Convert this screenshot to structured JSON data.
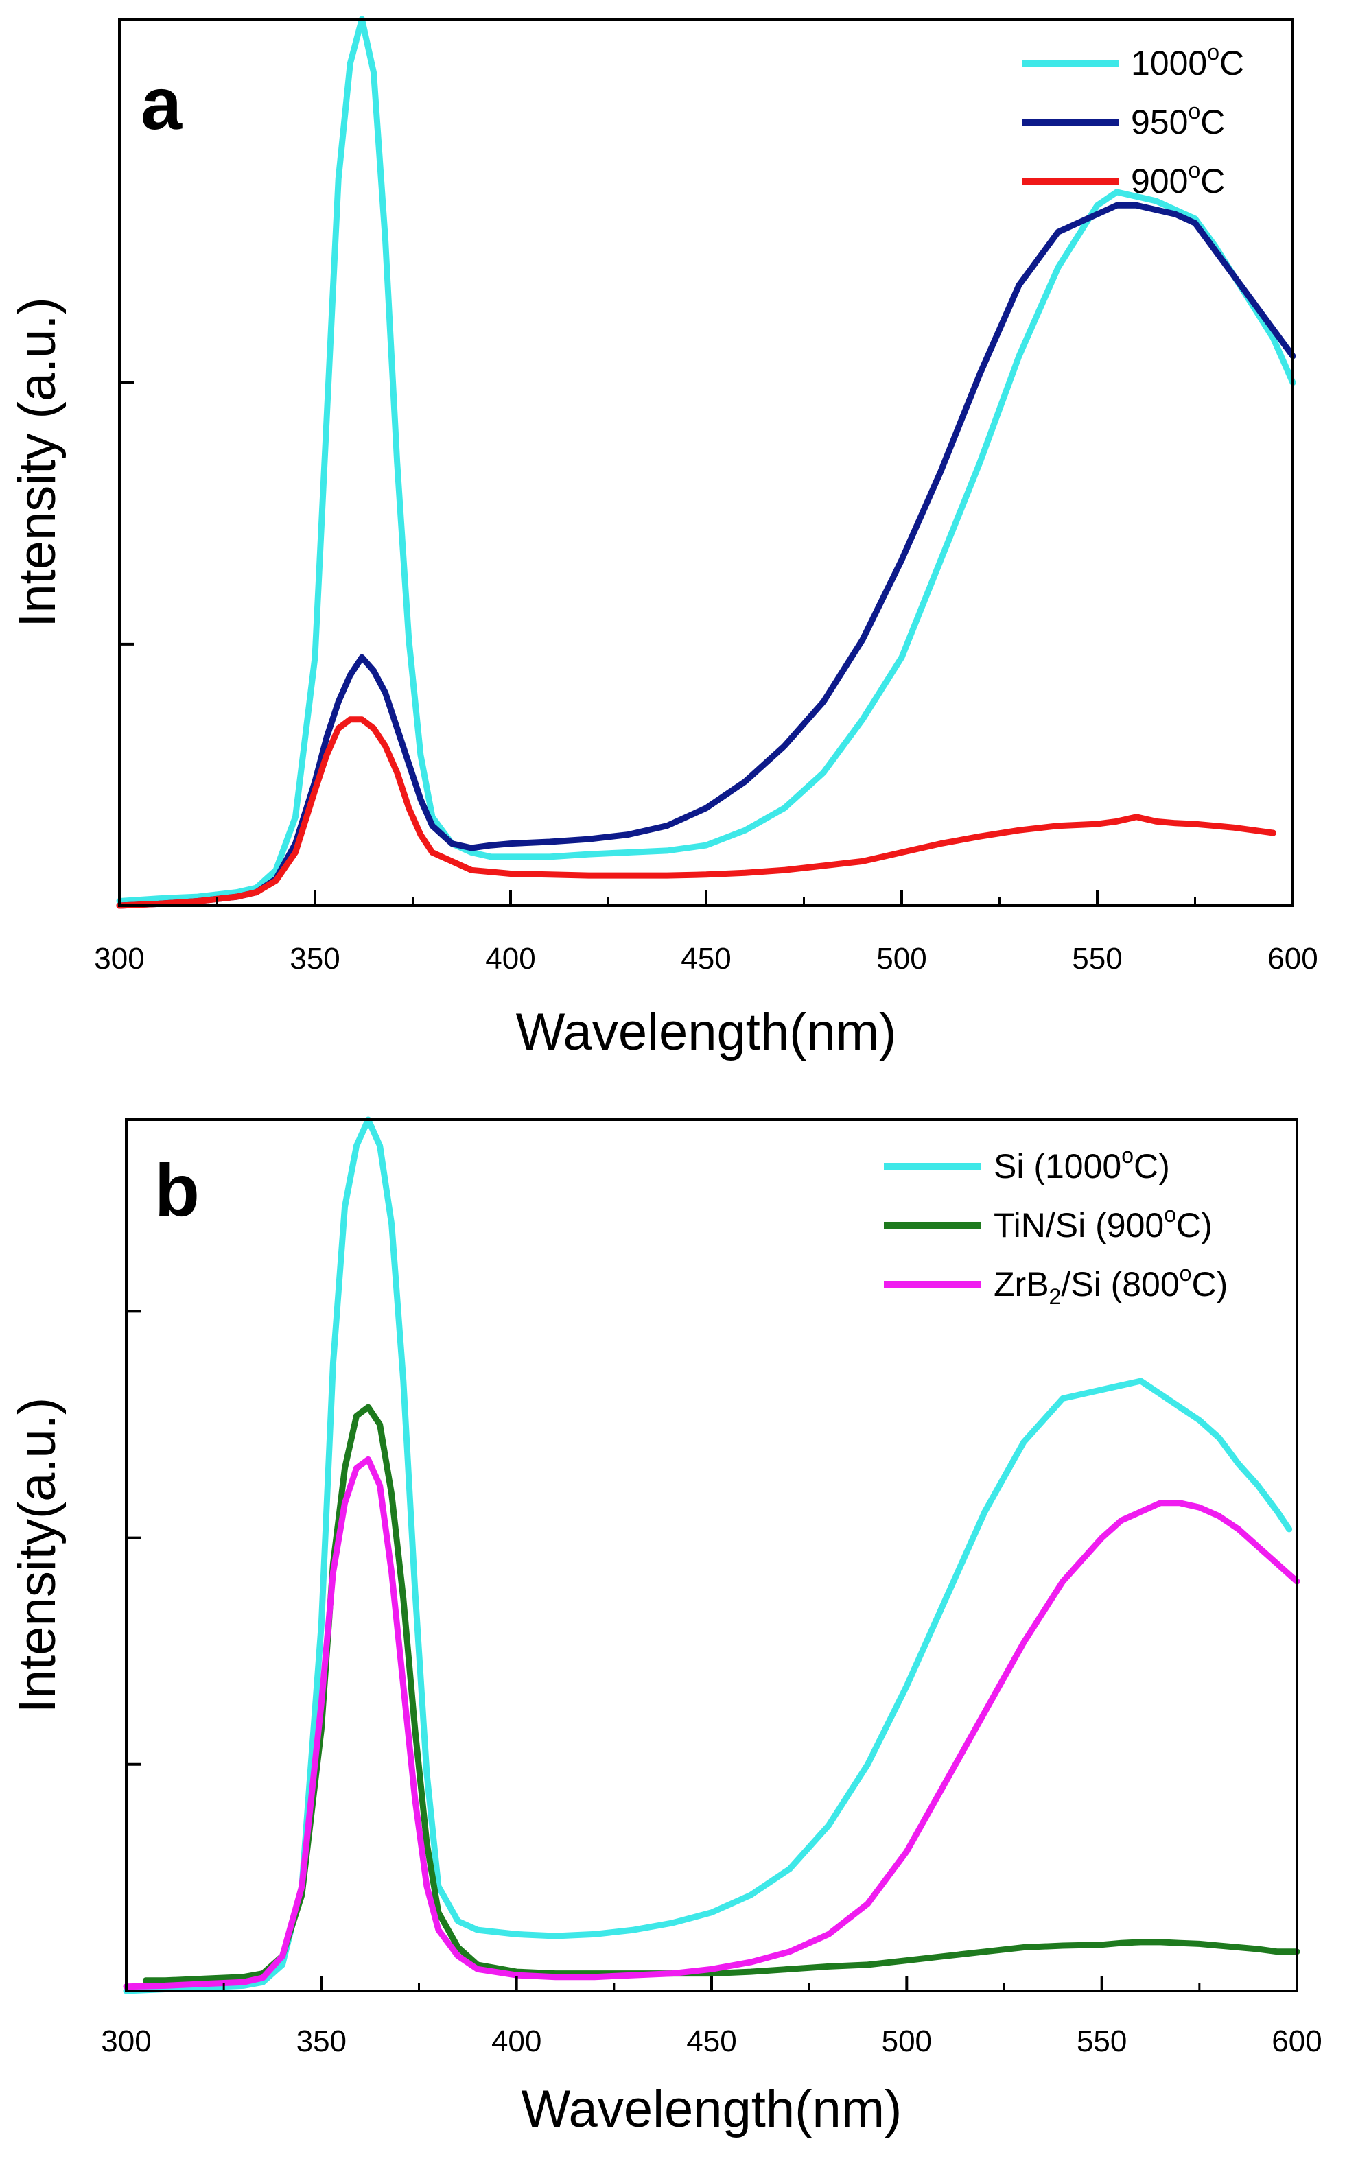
{
  "chart_data": [
    {
      "type": "line",
      "panel_label": "a",
      "xlabel": "Wavelength(nm)",
      "ylabel": "Intensity (a.u.)",
      "xlim": [
        300,
        600
      ],
      "ylim": [
        0,
        1
      ],
      "xticks": [
        300,
        350,
        400,
        450,
        500,
        550,
        600
      ],
      "yticks": [
        0.295,
        0.59
      ],
      "grid": false,
      "legend_position": "top-right",
      "series": [
        {
          "name": "1000°C",
          "label_main": "1000",
          "label_sup": "o",
          "label_end": "C",
          "color": "#3ee8e8",
          "x": [
            300,
            310,
            320,
            330,
            335,
            340,
            345,
            350,
            353,
            356,
            359,
            362,
            365,
            368,
            371,
            374,
            377,
            380,
            385,
            390,
            395,
            400,
            410,
            420,
            430,
            440,
            450,
            460,
            470,
            480,
            490,
            500,
            510,
            520,
            530,
            540,
            550,
            555,
            560,
            565,
            570,
            575,
            580,
            585,
            590,
            595,
            600
          ],
          "y": [
            0.005,
            0.008,
            0.01,
            0.015,
            0.02,
            0.04,
            0.1,
            0.28,
            0.55,
            0.82,
            0.95,
            1.0,
            0.94,
            0.75,
            0.5,
            0.3,
            0.17,
            0.1,
            0.07,
            0.06,
            0.055,
            0.055,
            0.055,
            0.058,
            0.06,
            0.062,
            0.068,
            0.085,
            0.11,
            0.15,
            0.21,
            0.28,
            0.39,
            0.5,
            0.62,
            0.72,
            0.79,
            0.805,
            0.8,
            0.795,
            0.785,
            0.775,
            0.745,
            0.71,
            0.675,
            0.64,
            0.59
          ]
        },
        {
          "name": "950°C",
          "label_main": "950",
          "label_sup": "o",
          "label_end": "C",
          "color": "#0d1a8a",
          "x": [
            300,
            310,
            320,
            330,
            335,
            340,
            345,
            350,
            353,
            356,
            359,
            362,
            365,
            368,
            371,
            374,
            377,
            380,
            385,
            390,
            395,
            400,
            410,
            420,
            430,
            440,
            450,
            460,
            470,
            480,
            490,
            500,
            510,
            520,
            530,
            540,
            550,
            555,
            560,
            565,
            570,
            575,
            580,
            585,
            590,
            595,
            600
          ],
          "y": [
            0.0,
            0.002,
            0.005,
            0.01,
            0.015,
            0.03,
            0.07,
            0.14,
            0.19,
            0.23,
            0.26,
            0.28,
            0.265,
            0.24,
            0.2,
            0.16,
            0.12,
            0.09,
            0.07,
            0.065,
            0.068,
            0.07,
            0.072,
            0.075,
            0.08,
            0.09,
            0.11,
            0.14,
            0.18,
            0.23,
            0.3,
            0.39,
            0.49,
            0.6,
            0.7,
            0.76,
            0.78,
            0.79,
            0.79,
            0.785,
            0.78,
            0.77,
            0.74,
            0.71,
            0.68,
            0.65,
            0.62
          ]
        },
        {
          "name": "900°C",
          "label_main": "900",
          "label_sup": "o",
          "label_end": "C",
          "color": "#f01818",
          "x": [
            300,
            310,
            320,
            330,
            335,
            340,
            345,
            350,
            353,
            356,
            359,
            362,
            365,
            368,
            371,
            374,
            377,
            380,
            385,
            390,
            395,
            400,
            410,
            420,
            430,
            440,
            450,
            460,
            470,
            480,
            490,
            500,
            510,
            520,
            530,
            540,
            550,
            555,
            560,
            565,
            570,
            575,
            580,
            585,
            590,
            595
          ],
          "y": [
            0.0,
            0.002,
            0.005,
            0.01,
            0.015,
            0.028,
            0.06,
            0.13,
            0.17,
            0.2,
            0.21,
            0.21,
            0.2,
            0.18,
            0.15,
            0.11,
            0.08,
            0.06,
            0.05,
            0.04,
            0.038,
            0.036,
            0.035,
            0.034,
            0.034,
            0.034,
            0.035,
            0.037,
            0.04,
            0.045,
            0.05,
            0.06,
            0.07,
            0.078,
            0.085,
            0.09,
            0.092,
            0.095,
            0.1,
            0.095,
            0.093,
            0.092,
            0.09,
            0.088,
            0.085,
            0.082
          ]
        }
      ]
    },
    {
      "type": "line",
      "panel_label": "b",
      "xlabel": "Wavelength(nm)",
      "ylabel": "Intensity(a.u.)",
      "xlim": [
        300,
        600
      ],
      "ylim": [
        0,
        1
      ],
      "xticks": [
        300,
        350,
        400,
        450,
        500,
        550,
        600
      ],
      "yticks": [
        0.26,
        0.52,
        0.78
      ],
      "grid": false,
      "legend_position": "top-right",
      "series": [
        {
          "name": "Si (1000°C)",
          "label_main": "Si (1000",
          "label_sup": "o",
          "label_end": "C)",
          "color": "#3ee8e8",
          "x": [
            300,
            310,
            320,
            330,
            335,
            340,
            345,
            350,
            353,
            356,
            359,
            362,
            365,
            368,
            371,
            374,
            377,
            380,
            385,
            390,
            400,
            410,
            420,
            430,
            440,
            450,
            460,
            470,
            480,
            490,
            500,
            510,
            520,
            530,
            540,
            550,
            555,
            560,
            565,
            570,
            575,
            580,
            585,
            590,
            595,
            598
          ],
          "y": [
            0.0,
            0.002,
            0.004,
            0.006,
            0.01,
            0.03,
            0.12,
            0.42,
            0.72,
            0.9,
            0.97,
            1.0,
            0.97,
            0.88,
            0.7,
            0.46,
            0.25,
            0.12,
            0.08,
            0.07,
            0.065,
            0.063,
            0.065,
            0.07,
            0.078,
            0.09,
            0.11,
            0.14,
            0.19,
            0.26,
            0.35,
            0.45,
            0.55,
            0.63,
            0.68,
            0.69,
            0.695,
            0.7,
            0.685,
            0.67,
            0.655,
            0.635,
            0.605,
            0.58,
            0.55,
            0.53
          ]
        },
        {
          "name": "TiN/Si (900°C)",
          "label_main": "TiN/Si (900",
          "label_sup": "o",
          "label_end": "C)",
          "color": "#1e7a1e",
          "x": [
            305,
            310,
            320,
            330,
            335,
            340,
            345,
            350,
            353,
            356,
            359,
            362,
            365,
            368,
            371,
            374,
            377,
            380,
            385,
            390,
            400,
            410,
            420,
            430,
            440,
            450,
            460,
            470,
            480,
            490,
            500,
            510,
            520,
            530,
            540,
            550,
            555,
            560,
            565,
            570,
            575,
            580,
            585,
            590,
            595,
            600
          ],
          "y": [
            0.012,
            0.012,
            0.014,
            0.016,
            0.02,
            0.04,
            0.11,
            0.3,
            0.49,
            0.6,
            0.66,
            0.67,
            0.65,
            0.57,
            0.45,
            0.3,
            0.17,
            0.09,
            0.05,
            0.03,
            0.022,
            0.02,
            0.02,
            0.02,
            0.02,
            0.02,
            0.022,
            0.025,
            0.028,
            0.03,
            0.035,
            0.04,
            0.045,
            0.05,
            0.052,
            0.053,
            0.055,
            0.056,
            0.056,
            0.055,
            0.054,
            0.052,
            0.05,
            0.048,
            0.045,
            0.045
          ]
        },
        {
          "name": "ZrB2/Si (800°C)",
          "label_main": "ZrB",
          "label_sub": "2",
          "label_mid": "/Si (800",
          "label_sup": "o",
          "label_end": "C)",
          "color": "#f01cf0",
          "x": [
            300,
            310,
            320,
            330,
            335,
            340,
            345,
            350,
            353,
            356,
            359,
            362,
            365,
            368,
            371,
            374,
            377,
            380,
            385,
            390,
            400,
            410,
            420,
            430,
            440,
            450,
            460,
            470,
            480,
            490,
            500,
            510,
            520,
            530,
            540,
            550,
            555,
            560,
            565,
            570,
            575,
            580,
            585,
            590,
            595,
            600
          ],
          "y": [
            0.005,
            0.006,
            0.008,
            0.01,
            0.015,
            0.04,
            0.12,
            0.33,
            0.48,
            0.56,
            0.6,
            0.61,
            0.58,
            0.48,
            0.35,
            0.22,
            0.12,
            0.07,
            0.04,
            0.025,
            0.018,
            0.016,
            0.016,
            0.018,
            0.02,
            0.025,
            0.033,
            0.045,
            0.065,
            0.1,
            0.16,
            0.24,
            0.32,
            0.4,
            0.47,
            0.52,
            0.54,
            0.55,
            0.56,
            0.56,
            0.555,
            0.545,
            0.53,
            0.51,
            0.49,
            0.47
          ]
        }
      ]
    }
  ]
}
